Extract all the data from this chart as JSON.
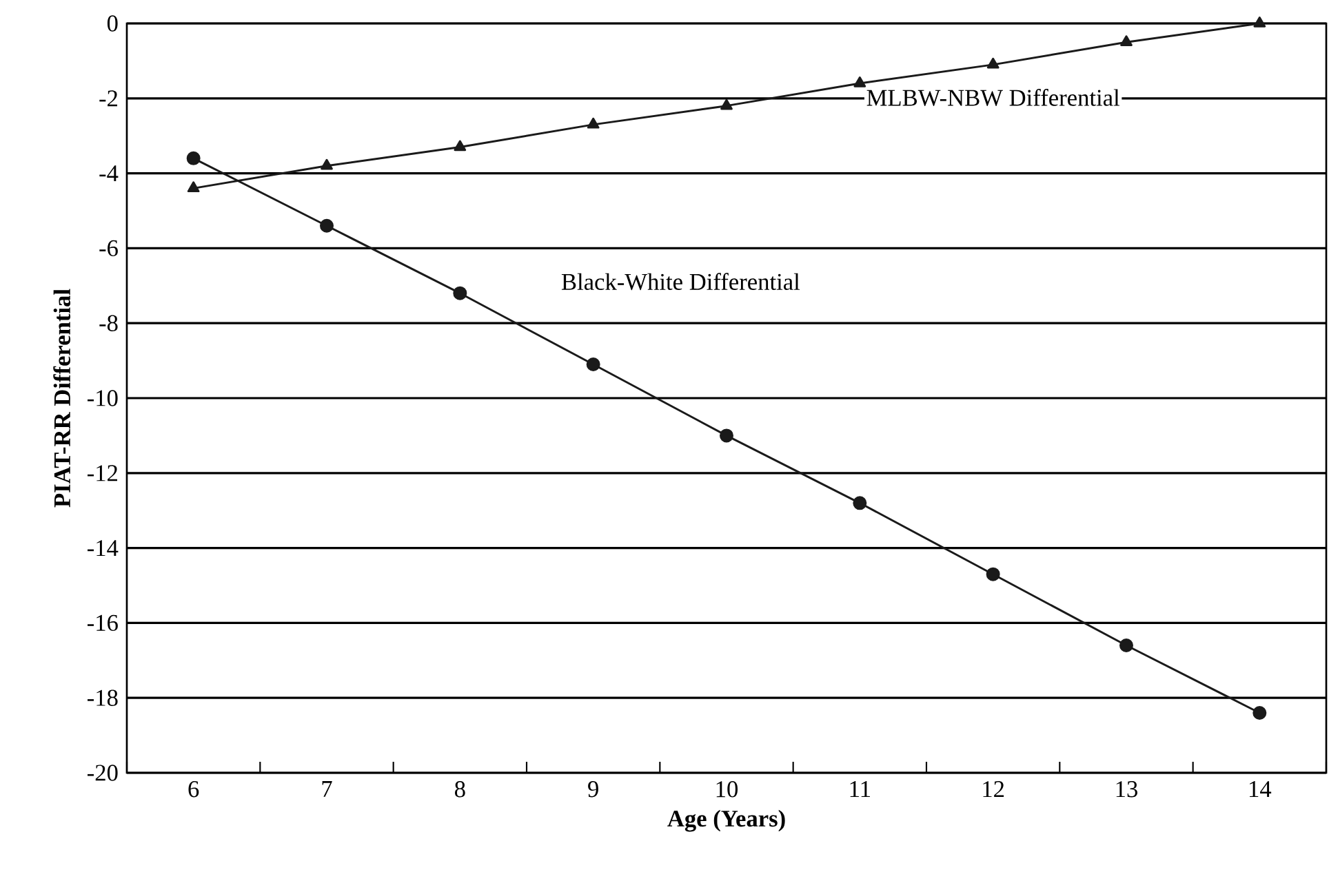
{
  "chart_data": {
    "type": "line",
    "xlabel": "Age (Years)",
    "ylabel": "PIAT-RR Differential",
    "categories": [
      "6",
      "7",
      "8",
      "9",
      "10",
      "11",
      "12",
      "13",
      "14"
    ],
    "series": [
      {
        "name": "MLBW-NBW Differential",
        "color": "#1a1a1a",
        "marker": "triangle",
        "values": [
          -4.4,
          -3.8,
          -3.3,
          -2.7,
          -2.2,
          -1.6,
          -1.1,
          -0.5,
          0
        ]
      },
      {
        "name": "Black-White Differential",
        "color": "#1a1a1a",
        "marker": "circle",
        "values": [
          -3.6,
          -5.4,
          -7.2,
          -9.1,
          -11.0,
          -12.8,
          -14.7,
          -16.6,
          -18.4
        ]
      }
    ],
    "ylim": [
      -20,
      0
    ],
    "yticks": [
      -20,
      -18,
      -16,
      -14,
      -12,
      -10,
      -8,
      -6,
      -4,
      -2,
      0
    ],
    "grid": "y",
    "legend": false,
    "line_style": "solid"
  }
}
